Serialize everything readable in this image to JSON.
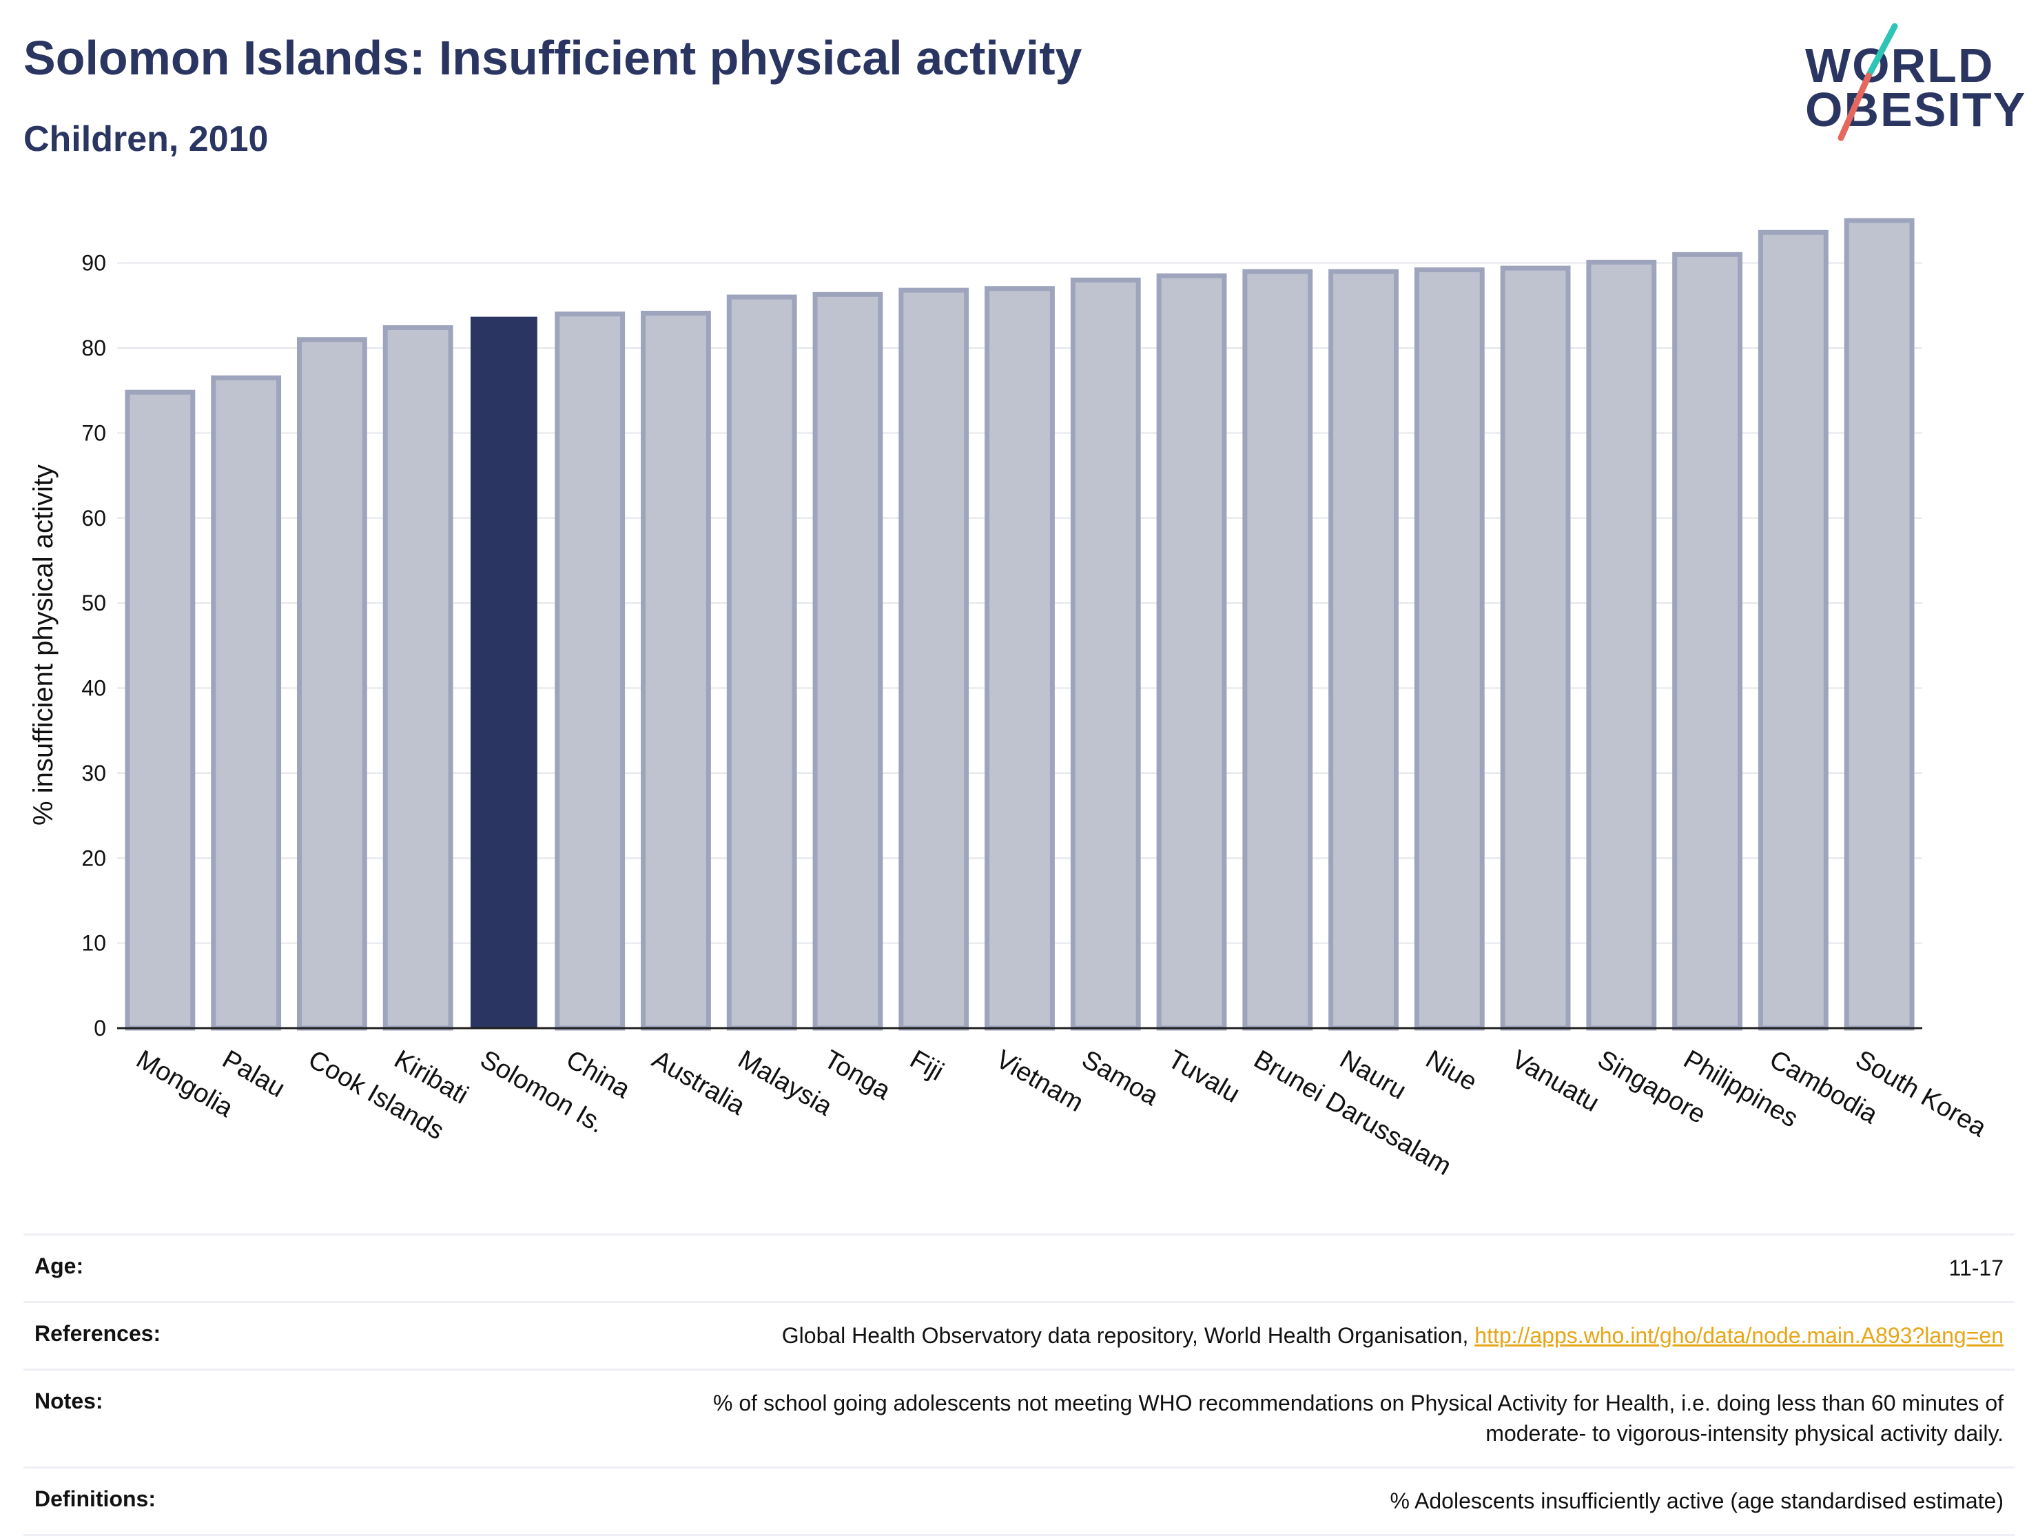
{
  "header": {
    "title": "Solomon Islands: Insufficient physical activity",
    "subtitle": "Children, 2010"
  },
  "logo": {
    "line1": "WORLD",
    "line2": "OBESITY",
    "accent_colors": [
      "#2ec4b6",
      "#e4685d"
    ]
  },
  "colors": {
    "highlight_bar": "#2a3561",
    "other_bar_fill": "#bfc3d0",
    "other_bar_stroke": "#9ea4bb",
    "text": "#2a3561",
    "link": "#e7a617"
  },
  "chart_data": {
    "type": "bar",
    "ylabel": "% insufficient physical activity",
    "ylim": [
      0,
      95
    ],
    "yticks": [
      0,
      10,
      20,
      30,
      40,
      50,
      60,
      70,
      80,
      90
    ],
    "grid": true,
    "highlight": "Solomon Is.",
    "categories": [
      "Mongolia",
      "Palau",
      "Cook Islands",
      "Kiribati",
      "Solomon Is.",
      "China",
      "Australia",
      "Malaysia",
      "Tonga",
      "Fiji",
      "Vietnam",
      "Samoa",
      "Tuvalu",
      "Brunei Darussalam",
      "Nauru",
      "Niue",
      "Vanuatu",
      "Singapore",
      "Philippines",
      "Cambodia",
      "South Korea"
    ],
    "values": [
      74.8,
      76.5,
      81.0,
      82.4,
      83.6,
      84.0,
      84.1,
      86.0,
      86.3,
      86.8,
      87.0,
      88.0,
      88.5,
      89.0,
      89.0,
      89.2,
      89.4,
      90.1,
      91.0,
      93.6,
      95.0
    ]
  },
  "info": {
    "age": {
      "label": "Age:",
      "value": "11-17"
    },
    "references": {
      "label": "References:",
      "value": "Global Health Observatory data repository, World Health Organisation,",
      "link": "http://apps.who.int/gho/data/node.main.A893?lang=en"
    },
    "notes": {
      "label": "Notes:",
      "line1": "% of school going adolescents not meeting WHO recommendations on Physical Activity for Health, i.e. doing less than 60 minutes of",
      "line2": "moderate- to vigorous-intensity physical activity daily."
    },
    "definitions": {
      "label": "Definitions:",
      "value": "% Adolescents insufficiently active (age standardised estimate)"
    }
  }
}
